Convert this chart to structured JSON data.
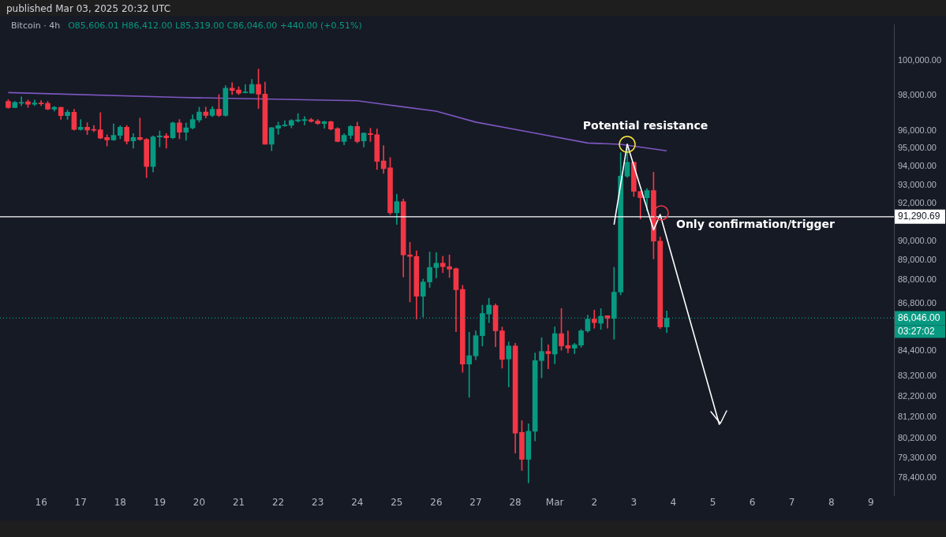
{
  "chart_data": {
    "type": "candlestick",
    "title": "Bitcoin · 4h",
    "subtitle": "published Mar 03, 2025 20:32 UTC",
    "annotations": [
      "O85,606.01 H86,412.00 L85,319.00 C86,046.00 +440.00 (+0.51%)",
      "Potential resistance",
      "Only confirmation/trigger",
      "03:27:02"
    ],
    "x": [
      "2025-02-15T04:00",
      "2025-02-15T08:00",
      "2025-02-15T12:00",
      "2025-02-15T16:00",
      "2025-02-15T20:00",
      "2025-02-16T00:00",
      "2025-02-16T04:00",
      "2025-02-16T08:00",
      "2025-02-16T12:00",
      "2025-02-16T16:00",
      "2025-02-16T20:00",
      "2025-02-17T00:00",
      "2025-02-17T04:00",
      "2025-02-17T08:00",
      "2025-02-17T12:00",
      "2025-02-17T16:00",
      "2025-02-17T20:00",
      "2025-02-18T00:00",
      "2025-02-18T04:00",
      "2025-02-18T08:00",
      "2025-02-18T12:00",
      "2025-02-18T16:00",
      "2025-02-18T20:00",
      "2025-02-19T00:00",
      "2025-02-19T04:00",
      "2025-02-19T08:00",
      "2025-02-19T12:00",
      "2025-02-19T16:00",
      "2025-02-19T20:00",
      "2025-02-20T00:00",
      "2025-02-20T04:00",
      "2025-02-20T08:00",
      "2025-02-20T12:00",
      "2025-02-20T16:00",
      "2025-02-20T20:00",
      "2025-02-21T00:00",
      "2025-02-21T04:00",
      "2025-02-21T08:00",
      "2025-02-21T12:00",
      "2025-02-21T16:00",
      "2025-02-21T20:00",
      "2025-02-22T00:00",
      "2025-02-22T04:00",
      "2025-02-22T08:00",
      "2025-02-22T12:00",
      "2025-02-22T16:00",
      "2025-02-22T20:00",
      "2025-02-23T00:00",
      "2025-02-23T04:00",
      "2025-02-23T08:00",
      "2025-02-23T12:00",
      "2025-02-23T16:00",
      "2025-02-23T20:00",
      "2025-02-24T00:00",
      "2025-02-24T04:00",
      "2025-02-24T08:00",
      "2025-02-24T12:00",
      "2025-02-24T16:00",
      "2025-02-24T20:00",
      "2025-02-25T00:00",
      "2025-02-25T04:00",
      "2025-02-25T08:00",
      "2025-02-25T12:00",
      "2025-02-25T16:00",
      "2025-02-25T20:00",
      "2025-02-26T00:00",
      "2025-02-26T04:00",
      "2025-02-26T08:00",
      "2025-02-26T12:00",
      "2025-02-26T16:00",
      "2025-02-26T20:00",
      "2025-02-27T00:00",
      "2025-02-27T04:00",
      "2025-02-27T08:00",
      "2025-02-27T12:00",
      "2025-02-27T16:00",
      "2025-02-27T20:00",
      "2025-02-28T00:00",
      "2025-02-28T04:00",
      "2025-02-28T08:00",
      "2025-02-28T12:00",
      "2025-02-28T16:00",
      "2025-02-28T20:00",
      "2025-03-01T00:00",
      "2025-03-01T04:00",
      "2025-03-01T08:00",
      "2025-03-01T12:00",
      "2025-03-01T16:00",
      "2025-03-01T20:00",
      "2025-03-02T00:00",
      "2025-03-02T04:00",
      "2025-03-02T08:00",
      "2025-03-02T12:00",
      "2025-03-02T16:00",
      "2025-03-02T20:00",
      "2025-03-03T00:00",
      "2025-03-03T04:00",
      "2025-03-03T08:00",
      "2025-03-03T12:00",
      "2025-03-03T16:00",
      "2025-03-03T20:00"
    ],
    "ohlc": [
      [
        97640,
        97750,
        97250,
        97290
      ],
      [
        97290,
        97640,
        97280,
        97590
      ],
      [
        97545,
        97905,
        97400,
        97590
      ],
      [
        97620,
        97720,
        97300,
        97480
      ],
      [
        97480,
        97720,
        97400,
        97560
      ],
      [
        97560,
        97690,
        97400,
        97510
      ],
      [
        97530,
        97640,
        97165,
        97200
      ],
      [
        97200,
        97360,
        97090,
        97310
      ],
      [
        97310,
        97310,
        96620,
        96840
      ],
      [
        96840,
        97150,
        96620,
        97030
      ],
      [
        97030,
        97200,
        96010,
        96060
      ],
      [
        96060,
        96620,
        96010,
        96190
      ],
      [
        96190,
        96440,
        95770,
        96030
      ],
      [
        96060,
        96280,
        95930,
        96010
      ],
      [
        96040,
        97010,
        95540,
        95570
      ],
      [
        95610,
        95770,
        95130,
        95480
      ],
      [
        95480,
        96370,
        95440,
        95730
      ],
      [
        95730,
        96270,
        95540,
        96190
      ],
      [
        96190,
        96280,
        95250,
        95400
      ],
      [
        95420,
        95830,
        95020,
        95610
      ],
      [
        95610,
        96700,
        95450,
        95500
      ],
      [
        95500,
        95560,
        93400,
        94000
      ],
      [
        94000,
        95700,
        93700,
        95640
      ],
      [
        95640,
        95980,
        95090,
        95700
      ],
      [
        95700,
        95830,
        95020,
        95600
      ],
      [
        95600,
        96470,
        95540,
        96430
      ],
      [
        96430,
        96620,
        95540,
        95900
      ],
      [
        95900,
        96430,
        95450,
        96150
      ],
      [
        96150,
        96880,
        96080,
        96620
      ],
      [
        96590,
        97320,
        96470,
        97040
      ],
      [
        97040,
        97320,
        96700,
        96850
      ],
      [
        96850,
        97350,
        96780,
        97200
      ],
      [
        97200,
        98040,
        96780,
        96850
      ],
      [
        96850,
        98550,
        96800,
        98400
      ],
      [
        98400,
        98720,
        98040,
        98270
      ],
      [
        98300,
        98480,
        98040,
        98110
      ],
      [
        98140,
        98600,
        98120,
        98190
      ],
      [
        98110,
        98910,
        98110,
        98620
      ],
      [
        98620,
        99500,
        97240,
        98060
      ],
      [
        98060,
        98750,
        95230,
        95230
      ],
      [
        95230,
        96160,
        94870,
        96160
      ],
      [
        96120,
        96470,
        95780,
        96270
      ],
      [
        96270,
        96550,
        96230,
        96300
      ],
      [
        96290,
        96620,
        96150,
        96560
      ],
      [
        96540,
        96950,
        96470,
        96590
      ],
      [
        96560,
        96780,
        96310,
        96620
      ],
      [
        96610,
        96680,
        96470,
        96510
      ],
      [
        96530,
        96620,
        96340,
        96390
      ],
      [
        96390,
        96530,
        96120,
        96500
      ],
      [
        96500,
        96530,
        96030,
        96080
      ],
      [
        96110,
        96160,
        95360,
        95390
      ],
      [
        95390,
        95820,
        95200,
        95730
      ],
      [
        95730,
        96280,
        95540,
        96230
      ],
      [
        96230,
        96470,
        95310,
        95390
      ],
      [
        95420,
        95880,
        95080,
        95850
      ],
      [
        95830,
        96130,
        95390,
        95770
      ],
      [
        95770,
        96080,
        93840,
        94290
      ],
      [
        94310,
        95160,
        93630,
        93890
      ],
      [
        93930,
        94500,
        91400,
        91500
      ],
      [
        91500,
        92500,
        90880,
        92100
      ],
      [
        92100,
        92240,
        88140,
        89280
      ],
      [
        89280,
        89940,
        86860,
        89200
      ],
      [
        89200,
        89490,
        86000,
        87150
      ],
      [
        87150,
        88030,
        86100,
        87880
      ],
      [
        87880,
        89430,
        87600,
        88630
      ],
      [
        88620,
        89400,
        88090,
        88850
      ],
      [
        88850,
        89210,
        88360,
        88670
      ],
      [
        88670,
        89280,
        88110,
        88540
      ],
      [
        88570,
        88600,
        85370,
        87480
      ],
      [
        87500,
        87710,
        83370,
        83770
      ],
      [
        83770,
        85340,
        82160,
        84180
      ],
      [
        84170,
        85410,
        83980,
        85170
      ],
      [
        85170,
        86700,
        84660,
        86280
      ],
      [
        86250,
        87050,
        85820,
        86700
      ],
      [
        86680,
        86770,
        84620,
        85410
      ],
      [
        85410,
        85600,
        83570,
        84000
      ],
      [
        84020,
        84860,
        82660,
        84660
      ],
      [
        84660,
        84790,
        79530,
        80460
      ],
      [
        80500,
        81050,
        78730,
        79240
      ],
      [
        79240,
        80900,
        78160,
        80550
      ],
      [
        80550,
        84320,
        80100,
        83940
      ],
      [
        83940,
        85070,
        83100,
        84390
      ],
      [
        84390,
        84720,
        83540,
        84280
      ],
      [
        84260,
        85610,
        83780,
        85270
      ],
      [
        85270,
        86530,
        84450,
        84660
      ],
      [
        84680,
        85410,
        84320,
        84550
      ],
      [
        84550,
        84790,
        84280,
        84720
      ],
      [
        84700,
        85480,
        84590,
        85410
      ],
      [
        85410,
        86200,
        85340,
        86000
      ],
      [
        86000,
        86450,
        85540,
        85820
      ],
      [
        85790,
        86520,
        85480,
        86140
      ],
      [
        86170,
        86170,
        85540,
        86030
      ],
      [
        86030,
        88640,
        84990,
        87360
      ],
      [
        87360,
        94770,
        87220,
        93480
      ],
      [
        93480,
        95080,
        93400,
        94240
      ],
      [
        94240,
        94240,
        92380,
        92650
      ],
      [
        92650,
        92650,
        91170,
        92310
      ],
      [
        92310,
        92800,
        91600,
        92700
      ],
      [
        92700,
        93690,
        89070,
        90000
      ],
      [
        90000,
        90220,
        85520,
        85606.01
      ],
      [
        85606.01,
        86412,
        85319,
        86046
      ]
    ],
    "series": [
      {
        "type": "line",
        "color": "#7e57c2",
        "x": [
          "2025-02-15T04:00",
          "2025-02-19T12:00",
          "2025-02-24T00:00",
          "2025-02-24T16:00",
          "2025-02-26T00:00",
          "2025-02-27T00:00",
          "2025-02-28T08:00",
          "2025-03-01T20:00",
          "2025-03-02T16:00",
          "2025-03-03T20:00"
        ],
        "values": [
          98150,
          97870,
          97680,
          97480,
          97090,
          96470,
          95920,
          95300,
          95230,
          94870
        ]
      },
      {
        "type": "line",
        "color": "#ffffff",
        "x": [
          "2025-03-02T12:00",
          "2025-03-02T20:00",
          "2025-03-03T12:00",
          "2025-03-03T16:00",
          "2025-03-05T04:00"
        ],
        "values": [
          90870,
          95240,
          90590,
          91410,
          80850
        ]
      }
    ],
    "xlim": [
      "2025-02-14T23:00",
      "2025-03-09T14:00"
    ],
    "xticks": [
      {
        "value": "2025-02-16",
        "label": "16"
      },
      {
        "value": "2025-02-17",
        "label": "17"
      },
      {
        "value": "2025-02-18",
        "label": "18"
      },
      {
        "value": "2025-02-19",
        "label": "19"
      },
      {
        "value": "2025-02-20",
        "label": "20"
      },
      {
        "value": "2025-02-21",
        "label": "21"
      },
      {
        "value": "2025-02-22",
        "label": "22"
      },
      {
        "value": "2025-02-23",
        "label": "23"
      },
      {
        "value": "2025-02-24",
        "label": "24"
      },
      {
        "value": "2025-02-25",
        "label": "25"
      },
      {
        "value": "2025-02-26",
        "label": "26"
      },
      {
        "value": "2025-02-27",
        "label": "27"
      },
      {
        "value": "2025-02-28",
        "label": "28"
      },
      {
        "value": "2025-03-01",
        "label": "Mar"
      },
      {
        "value": "2025-03-02",
        "label": "2"
      },
      {
        "value": "2025-03-03",
        "label": "3"
      },
      {
        "value": "2025-03-04",
        "label": "4"
      },
      {
        "value": "2025-03-05",
        "label": "5"
      },
      {
        "value": "2025-03-06",
        "label": "6"
      },
      {
        "value": "2025-03-07",
        "label": "7"
      },
      {
        "value": "2025-03-08",
        "label": "8"
      },
      {
        "value": "2025-03-09",
        "label": "9"
      }
    ],
    "ylim": [
      77600,
      102100
    ],
    "log": true,
    "yticks": [
      {
        "value": 100000,
        "label": "100,000.00"
      },
      {
        "value": 98000,
        "label": "98,000.00"
      },
      {
        "value": 96000,
        "label": "96,000.00"
      },
      {
        "value": 95000,
        "label": "95,000.00"
      },
      {
        "value": 94000,
        "label": "94,000.00"
      },
      {
        "value": 93000,
        "label": "93,000.00"
      },
      {
        "value": 92000,
        "label": "92,000.00"
      },
      {
        "value": 90000,
        "label": "90,000.00"
      },
      {
        "value": 89000,
        "label": "89,000.00"
      },
      {
        "value": 88000,
        "label": "88,000.00"
      },
      {
        "value": 86800,
        "label": "86,800.00"
      },
      {
        "value": 84400,
        "label": "84,400.00"
      },
      {
        "value": 83200,
        "label": "83,200.00"
      },
      {
        "value": 82200,
        "label": "82,200.00"
      },
      {
        "value": 81200,
        "label": "81,200.00"
      },
      {
        "value": 80200,
        "label": "80,200.00"
      },
      {
        "value": 79300,
        "label": "79,300.00"
      },
      {
        "value": 78400,
        "label": "78,400.00"
      }
    ],
    "ref_lines": [
      {
        "axis": "y",
        "value": 91290.69,
        "label": "91,290.69",
        "color": "#ffffff",
        "line_style": "solid"
      },
      {
        "axis": "y",
        "value": 86046,
        "label": "86,046.00",
        "color": "#089981",
        "line_style": "dotted"
      }
    ],
    "grid": false,
    "legend": false
  }
}
